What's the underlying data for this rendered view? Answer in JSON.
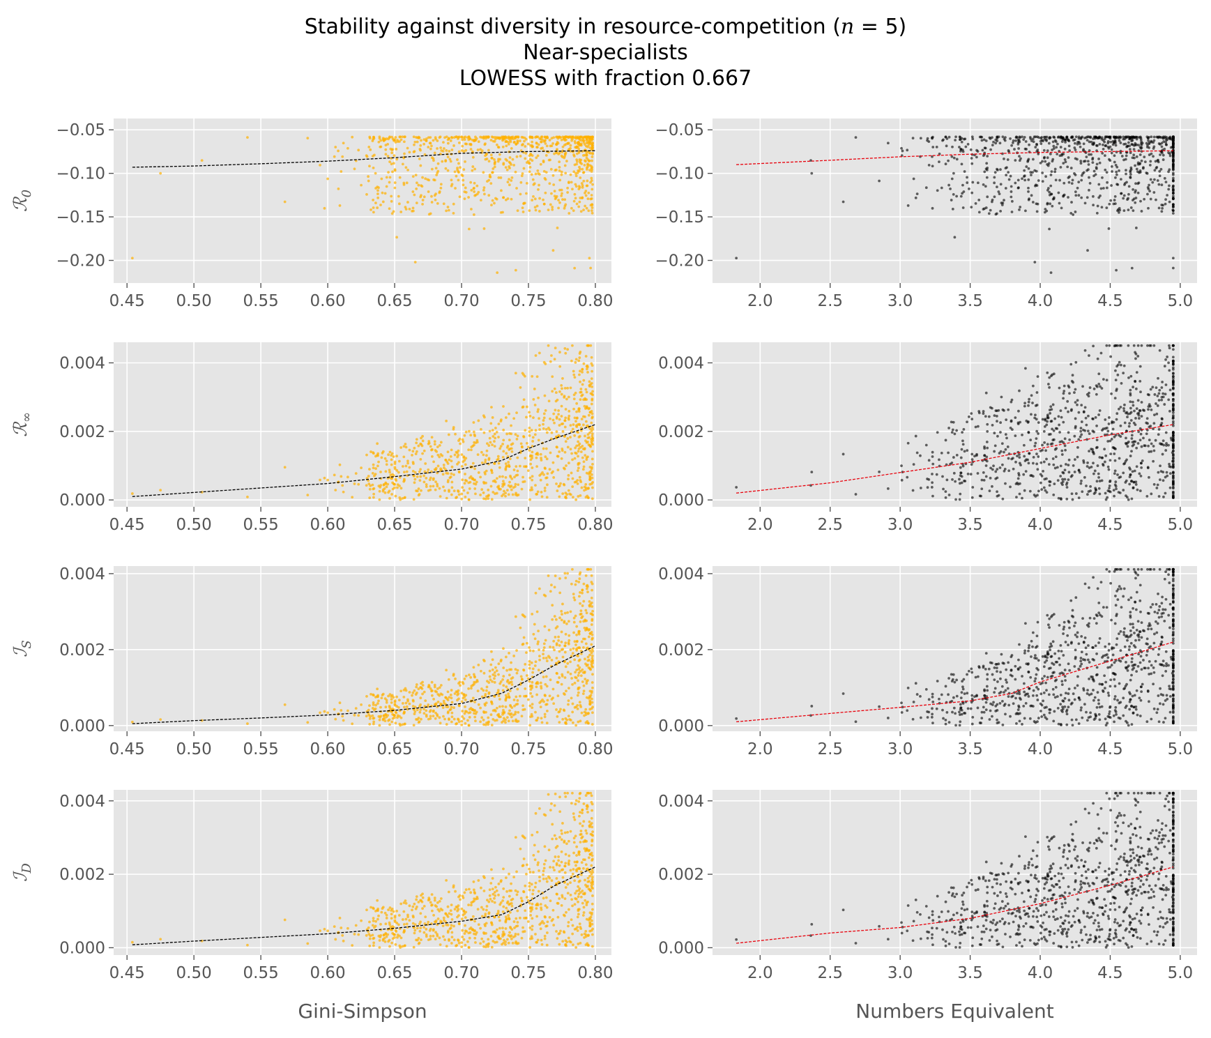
{
  "figure": {
    "title_lines": [
      "Stability against diversity in resource-competition (n = 5)",
      "Near-specialists",
      "LOWESS with fraction 0.667"
    ]
  },
  "colors": {
    "panel_background": "#e5e5e5",
    "grid": "#ffffff",
    "tick_text": "#555555",
    "gini_points": "#ffb000",
    "numbers_points": "#000000",
    "gini_fit": "#000000",
    "numbers_fit": "#e8000b"
  },
  "chart_data": [
    {
      "type": "scatter",
      "row": 0,
      "col": 0,
      "ylabel": "R0",
      "xlabel": "",
      "xlim": [
        0.44,
        0.812
      ],
      "ylim": [
        -0.226,
        -0.037
      ],
      "xticks": [
        0.45,
        0.5,
        0.55,
        0.6,
        0.65,
        0.7,
        0.75,
        0.8
      ],
      "xtick_labels": [
        "0.45",
        "0.50",
        "0.55",
        "0.60",
        "0.65",
        "0.70",
        "0.75",
        "0.80"
      ],
      "yticks": [
        -0.05,
        -0.1,
        -0.15,
        -0.2
      ],
      "ytick_labels": [
        "−0.05",
        "−0.10",
        "−0.15",
        "−0.20"
      ],
      "lowess_fraction": 0.667,
      "fit": {
        "x": [
          0.454,
          0.5,
          0.55,
          0.6,
          0.65,
          0.7,
          0.75,
          0.8
        ],
        "y": [
          -0.093,
          -0.0915,
          -0.089,
          -0.086,
          -0.082,
          -0.077,
          -0.075,
          -0.074
        ]
      }
    },
    {
      "type": "scatter",
      "row": 0,
      "col": 1,
      "ylabel": "R0",
      "xlabel": "",
      "xlim": [
        1.66,
        5.12
      ],
      "ylim": [
        -0.226,
        -0.037
      ],
      "xticks": [
        2.0,
        2.5,
        3.0,
        3.5,
        4.0,
        4.5,
        5.0
      ],
      "xtick_labels": [
        "2.0",
        "2.5",
        "3.0",
        "3.5",
        "4.0",
        "4.5",
        "5.0"
      ],
      "yticks": [
        -0.05,
        -0.1,
        -0.15,
        -0.2
      ],
      "ytick_labels": [
        "−0.05",
        "−0.10",
        "−0.15",
        "−0.20"
      ],
      "lowess_fraction": 0.667,
      "fit": {
        "x": [
          1.83,
          2.5,
          3.0,
          3.5,
          4.0,
          4.5,
          4.95
        ],
        "y": [
          -0.09,
          -0.085,
          -0.081,
          -0.078,
          -0.076,
          -0.075,
          -0.074
        ]
      }
    },
    {
      "type": "scatter",
      "row": 1,
      "col": 0,
      "ylabel": "R∞",
      "xlabel": "",
      "xlim": [
        0.44,
        0.812
      ],
      "ylim": [
        -0.0002,
        0.0046
      ],
      "xticks": [
        0.45,
        0.5,
        0.55,
        0.6,
        0.65,
        0.7,
        0.75,
        0.8
      ],
      "xtick_labels": [
        "0.45",
        "0.50",
        "0.55",
        "0.60",
        "0.65",
        "0.70",
        "0.75",
        "0.80"
      ],
      "yticks": [
        0.0,
        0.002,
        0.004
      ],
      "ytick_labels": [
        "0.000",
        "0.002",
        "0.004"
      ],
      "lowess_fraction": 0.667,
      "fit": {
        "x": [
          0.454,
          0.5,
          0.55,
          0.6,
          0.65,
          0.7,
          0.73,
          0.75,
          0.77,
          0.8
        ],
        "y": [
          0.0001,
          0.00022,
          0.00035,
          0.00048,
          0.00068,
          0.0009,
          0.00115,
          0.0015,
          0.0018,
          0.0022
        ]
      }
    },
    {
      "type": "scatter",
      "row": 1,
      "col": 1,
      "ylabel": "R∞",
      "xlabel": "",
      "xlim": [
        1.66,
        5.12
      ],
      "ylim": [
        -0.0002,
        0.0046
      ],
      "xticks": [
        2.0,
        2.5,
        3.0,
        3.5,
        4.0,
        4.5,
        5.0
      ],
      "xtick_labels": [
        "2.0",
        "2.5",
        "3.0",
        "3.5",
        "4.0",
        "4.5",
        "5.0"
      ],
      "yticks": [
        0.0,
        0.002,
        0.004
      ],
      "ytick_labels": [
        "0.000",
        "0.002",
        "0.004"
      ],
      "lowess_fraction": 0.667,
      "fit": {
        "x": [
          1.83,
          2.5,
          3.0,
          3.5,
          4.0,
          4.5,
          4.95
        ],
        "y": [
          0.0002,
          0.0005,
          0.0008,
          0.0011,
          0.0015,
          0.0019,
          0.0022
        ]
      }
    },
    {
      "type": "scatter",
      "row": 2,
      "col": 0,
      "ylabel": "IS",
      "xlabel": "",
      "xlim": [
        0.44,
        0.812
      ],
      "ylim": [
        -0.00015,
        0.0042
      ],
      "xticks": [
        0.45,
        0.5,
        0.55,
        0.6,
        0.65,
        0.7,
        0.75,
        0.8
      ],
      "xtick_labels": [
        "0.45",
        "0.50",
        "0.55",
        "0.60",
        "0.65",
        "0.70",
        "0.75",
        "0.80"
      ],
      "yticks": [
        0.0,
        0.002,
        0.004
      ],
      "ytick_labels": [
        "0.000",
        "0.002",
        "0.004"
      ],
      "lowess_fraction": 0.667,
      "fit": {
        "x": [
          0.454,
          0.5,
          0.55,
          0.6,
          0.65,
          0.7,
          0.73,
          0.75,
          0.77,
          0.8
        ],
        "y": [
          5e-05,
          0.00013,
          0.0002,
          0.00028,
          0.0004,
          0.00058,
          0.00085,
          0.0012,
          0.0016,
          0.0021
        ]
      }
    },
    {
      "type": "scatter",
      "row": 2,
      "col": 1,
      "ylabel": "IS",
      "xlabel": "",
      "xlim": [
        1.66,
        5.12
      ],
      "ylim": [
        -0.00015,
        0.0042
      ],
      "xticks": [
        2.0,
        2.5,
        3.0,
        3.5,
        4.0,
        4.5,
        5.0
      ],
      "xtick_labels": [
        "2.0",
        "2.5",
        "3.0",
        "3.5",
        "4.0",
        "4.5",
        "5.0"
      ],
      "yticks": [
        0.0,
        0.002,
        0.004
      ],
      "ytick_labels": [
        "0.000",
        "0.002",
        "0.004"
      ],
      "lowess_fraction": 0.667,
      "fit": {
        "x": [
          1.83,
          2.5,
          3.0,
          3.5,
          3.8,
          4.0,
          4.5,
          4.95
        ],
        "y": [
          0.0001,
          0.00032,
          0.00048,
          0.00065,
          0.00085,
          0.00115,
          0.0017,
          0.0022
        ]
      }
    },
    {
      "type": "scatter",
      "row": 3,
      "col": 0,
      "ylabel": "ID",
      "xlabel": "Gini-Simpson",
      "xlim": [
        0.44,
        0.812
      ],
      "ylim": [
        -0.0002,
        0.0043
      ],
      "xticks": [
        0.45,
        0.5,
        0.55,
        0.6,
        0.65,
        0.7,
        0.75,
        0.8
      ],
      "xtick_labels": [
        "0.45",
        "0.50",
        "0.55",
        "0.60",
        "0.65",
        "0.70",
        "0.75",
        "0.80"
      ],
      "yticks": [
        0.0,
        0.002,
        0.004
      ],
      "ytick_labels": [
        "0.000",
        "0.002",
        "0.004"
      ],
      "lowess_fraction": 0.667,
      "fit": {
        "x": [
          0.454,
          0.5,
          0.55,
          0.6,
          0.65,
          0.7,
          0.73,
          0.75,
          0.77,
          0.8
        ],
        "y": [
          8e-05,
          0.00018,
          0.00028,
          0.00038,
          0.00053,
          0.00072,
          0.0009,
          0.00125,
          0.0017,
          0.0022
        ]
      }
    },
    {
      "type": "scatter",
      "row": 3,
      "col": 1,
      "ylabel": "ID",
      "xlabel": "Numbers Equivalent",
      "xlim": [
        1.66,
        5.12
      ],
      "ylim": [
        -0.0002,
        0.0043
      ],
      "xticks": [
        2.0,
        2.5,
        3.0,
        3.5,
        4.0,
        4.5,
        5.0
      ],
      "xtick_labels": [
        "2.0",
        "2.5",
        "3.0",
        "3.5",
        "4.0",
        "4.5",
        "5.0"
      ],
      "yticks": [
        0.0,
        0.002,
        0.004
      ],
      "ytick_labels": [
        "0.000",
        "0.002",
        "0.004"
      ],
      "lowess_fraction": 0.667,
      "fit": {
        "x": [
          1.83,
          2.5,
          3.0,
          3.5,
          4.0,
          4.5,
          4.95
        ],
        "y": [
          0.00012,
          0.0004,
          0.00055,
          0.0008,
          0.0012,
          0.0017,
          0.0022
        ]
      }
    }
  ]
}
